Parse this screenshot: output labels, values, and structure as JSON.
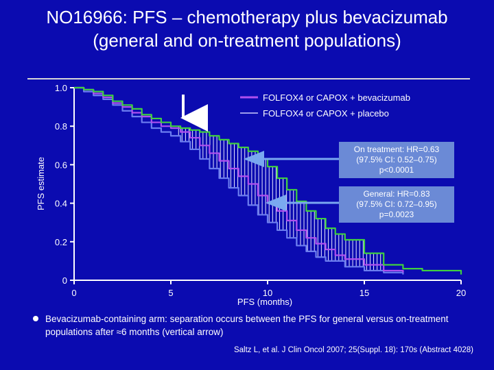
{
  "slide": {
    "title": "NO16966: PFS – chemotherapy plus bevacizumab (general and on-treatment populations)",
    "bullet": "Bevacizumab-containing arm: separation occurs between the PFS for general versus on-treatment populations after ≈6 months (vertical arrow)",
    "citation": "Saltz L, et al. J Clin Oncol 2007; 25(Suppl. 18): 170s (Abstract 4028)"
  },
  "annotations": {
    "on_treatment": [
      "On treatment: HR=0.63",
      "(97.5% CI: 0.52–0.75)",
      "p<0.0001"
    ],
    "general": [
      "General: HR=0.83",
      "(97.5% CI: 0.72–0.95)",
      "p=0.0023"
    ]
  },
  "colors": {
    "background": "#0b0bb0",
    "bevacizumab": "#b050f0",
    "placebo": "#6c7ef0",
    "on_treatment_bev": "#40d040",
    "annotation_box": "#6b8ad6",
    "arrow": "#7aa8f0"
  },
  "chart_data": {
    "type": "line",
    "xlabel": "PFS (months)",
    "ylabel": "PFS estimate",
    "xlim": [
      0,
      20
    ],
    "ylim": [
      0,
      1
    ],
    "x_ticks": [
      0,
      5,
      10,
      15,
      20
    ],
    "x_tick_labels": [
      "0",
      "5",
      "10",
      "15",
      "20"
    ],
    "y_ticks": [
      0,
      0.2,
      0.4,
      0.6,
      0.8,
      1.0
    ],
    "y_tick_labels": [
      "0",
      "0.2",
      "0.4",
      "0.6",
      "0.8",
      "1.0"
    ],
    "legend_position": "top-right",
    "legend": [
      "FOLFOX4 or CAPOX + bevacizumab",
      "FOLFOX4 or CAPOX + placebo"
    ],
    "series": [
      {
        "name": "FOLFOX4 or CAPOX + bevacizumab",
        "role": "bevacizumab-general",
        "color": "#b050f0",
        "x": [
          0,
          0.5,
          1,
          1.5,
          2,
          2.5,
          3,
          3.5,
          4,
          4.5,
          5,
          5.5,
          6,
          6.5,
          7,
          7.5,
          8,
          8.5,
          9,
          9.5,
          10,
          10.5,
          11,
          11.5,
          12,
          12.5,
          13,
          13.5,
          14,
          15,
          16,
          17
        ],
        "y": [
          1.0,
          0.99,
          0.97,
          0.95,
          0.92,
          0.9,
          0.87,
          0.85,
          0.82,
          0.8,
          0.79,
          0.77,
          0.74,
          0.7,
          0.66,
          0.62,
          0.58,
          0.54,
          0.5,
          0.44,
          0.4,
          0.36,
          0.31,
          0.26,
          0.22,
          0.19,
          0.16,
          0.13,
          0.11,
          0.08,
          0.05,
          0.04
        ]
      },
      {
        "name": "FOLFOX4 or CAPOX + placebo",
        "role": "placebo",
        "color": "#6c7ef0",
        "x": [
          0,
          0.5,
          1,
          1.5,
          2,
          2.5,
          3,
          3.5,
          4,
          4.5,
          5,
          5.5,
          6,
          6.5,
          7,
          7.5,
          8,
          8.5,
          9,
          9.5,
          10,
          10.5,
          11,
          11.5,
          12,
          12.5,
          13,
          14,
          15,
          16,
          17
        ],
        "y": [
          1.0,
          0.98,
          0.96,
          0.94,
          0.91,
          0.88,
          0.85,
          0.82,
          0.79,
          0.77,
          0.75,
          0.72,
          0.68,
          0.63,
          0.58,
          0.53,
          0.48,
          0.44,
          0.39,
          0.34,
          0.3,
          0.26,
          0.22,
          0.18,
          0.15,
          0.12,
          0.1,
          0.07,
          0.05,
          0.04,
          0.03
        ]
      },
      {
        "name": "",
        "role": "bevacizumab-on-treatment",
        "color": "#40d040",
        "x": [
          0,
          0.5,
          1,
          1.5,
          2,
          2.5,
          3,
          3.5,
          4,
          4.5,
          5,
          5.5,
          6,
          6.5,
          7,
          7.5,
          8,
          8.5,
          9,
          9.5,
          10,
          10.5,
          11,
          11.5,
          12,
          12.5,
          13,
          13.5,
          14,
          15,
          16,
          17,
          18,
          19,
          20
        ],
        "y": [
          1.0,
          0.99,
          0.98,
          0.96,
          0.93,
          0.91,
          0.89,
          0.86,
          0.84,
          0.82,
          0.8,
          0.79,
          0.78,
          0.77,
          0.75,
          0.73,
          0.71,
          0.69,
          0.67,
          0.63,
          0.59,
          0.53,
          0.47,
          0.41,
          0.36,
          0.32,
          0.27,
          0.24,
          0.21,
          0.14,
          0.08,
          0.06,
          0.05,
          0.05,
          0.03
        ]
      }
    ]
  }
}
